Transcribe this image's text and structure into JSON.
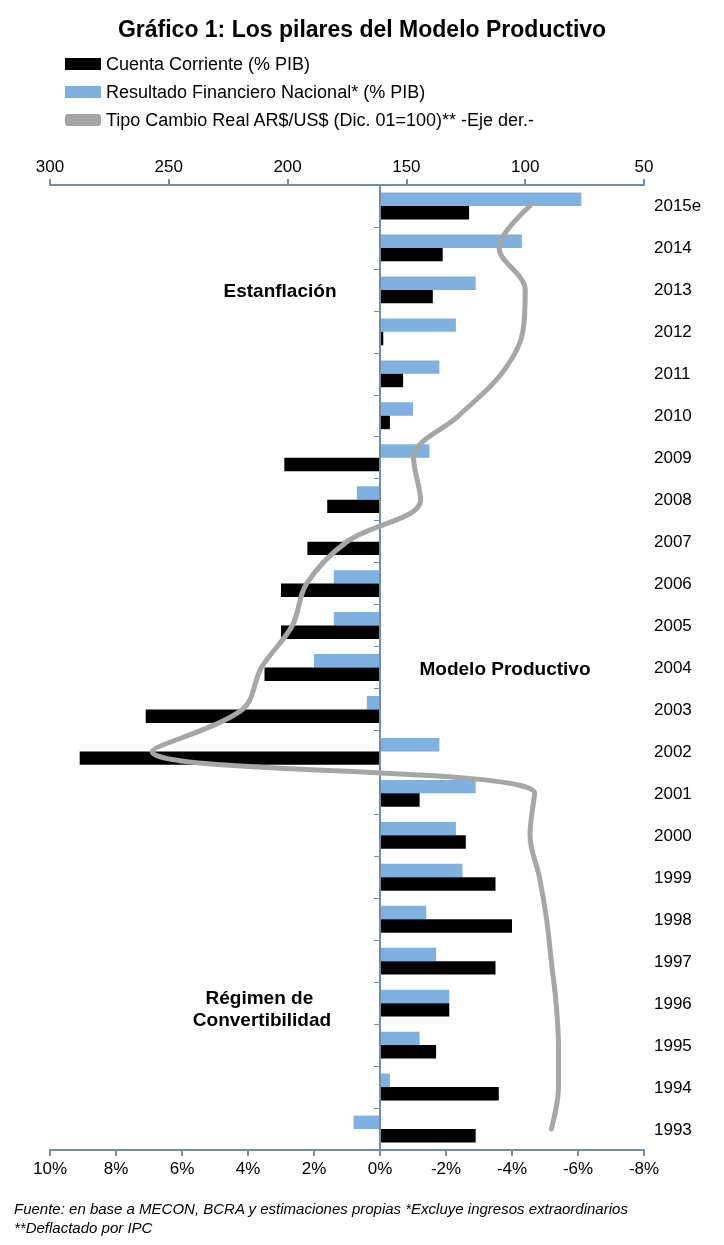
{
  "chart_data": {
    "type": "bar",
    "orientation": "horizontal",
    "title": "Gráfico 1: Los pilares del Modelo Productivo",
    "categories": [
      "2015e",
      "2014",
      "2013",
      "2012",
      "2011",
      "2010",
      "2009",
      "2008",
      "2007",
      "2006",
      "2005",
      "2004",
      "2003",
      "2002",
      "2001",
      "2000",
      "1999",
      "1998",
      "1997",
      "1996",
      "1995",
      "1994",
      "1993"
    ],
    "series": [
      {
        "name": "Cuenta Corriente (% PIB)",
        "color": "#000000",
        "values": [
          -2.7,
          -1.9,
          -1.6,
          -0.1,
          -0.7,
          -0.3,
          2.9,
          1.6,
          2.2,
          3.0,
          3.0,
          3.5,
          7.1,
          9.1,
          -1.2,
          -2.6,
          -3.5,
          -4.0,
          -3.5,
          -2.1,
          -1.7,
          -3.6,
          -2.9
        ]
      },
      {
        "name": "Resultado Financiero Nacional* (% PIB)",
        "color": "#7eb0e0",
        "values": [
          -6.1,
          -4.3,
          -2.9,
          -2.3,
          -1.8,
          -1.0,
          -1.5,
          0.7,
          0,
          1.4,
          1.4,
          2.0,
          0.4,
          -1.8,
          -2.9,
          -2.3,
          -2.5,
          -1.4,
          -1.7,
          -2.1,
          -1.2,
          -0.3,
          0.8
        ]
      },
      {
        "name": "Tipo Cambio Real AR$/US$ (Dic. 01=100)** -Eje der.-",
        "type": "line",
        "axis": "x2",
        "color": "#a6a6a6",
        "values": [
          98,
          111,
          100,
          101,
          110,
          128,
          147,
          144,
          175,
          192,
          198,
          211,
          219,
          257,
          96,
          98,
          94,
          91,
          89,
          87,
          86,
          86,
          89
        ]
      }
    ],
    "xlim": [
      10,
      -8
    ],
    "xticks": [
      {
        "value": 10,
        "label": "10%"
      },
      {
        "value": 8,
        "label": "8%"
      },
      {
        "value": 6,
        "label": "6%"
      },
      {
        "value": 4,
        "label": "4%"
      },
      {
        "value": 2,
        "label": "2%"
      },
      {
        "value": 0,
        "label": "0%"
      },
      {
        "value": -2,
        "label": "-2%"
      },
      {
        "value": -4,
        "label": "-4%"
      },
      {
        "value": -6,
        "label": "-6%"
      },
      {
        "value": -8,
        "label": "-8%"
      }
    ],
    "x2lim": [
      300,
      50
    ],
    "x2ticks": [
      300,
      250,
      200,
      150,
      100,
      50
    ],
    "grid": false,
    "legend": "top",
    "marker": "none",
    "ref_lines": [
      {
        "axis": "x",
        "value": 0,
        "color": "#6f8fa8"
      }
    ],
    "annotations": [
      "Régimen de Convertibilidad",
      "Modelo Productivo",
      "Estanflación",
      "Fuente: en base a MECON, BCRA y estimaciones propias *Excluye ingresos extraordinarios **Deflactado por IPC"
    ]
  }
}
